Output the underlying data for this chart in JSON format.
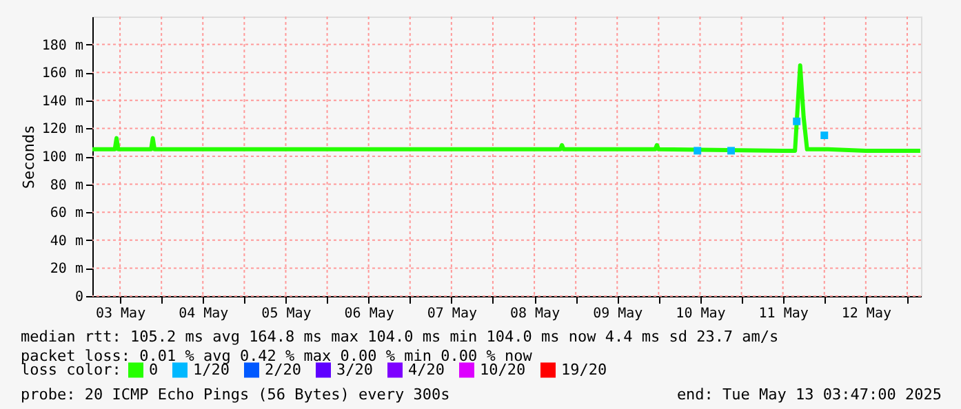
{
  "chart_data": {
    "type": "line",
    "ylabel": "Seconds",
    "x": [
      "2025-05-03T04:00",
      "2025-05-03T10:30",
      "2025-05-03T11:00",
      "2025-05-03T11:30",
      "2025-05-03T21:00",
      "2025-05-03T21:30",
      "2025-05-03T22:00",
      "2025-05-05T12:00",
      "2025-05-07T12:00",
      "2025-05-08T12:00",
      "2025-05-08T19:30",
      "2025-05-08T20:00",
      "2025-05-08T20:30",
      "2025-05-09T23:00",
      "2025-05-09T23:30",
      "2025-05-10T00:00",
      "2025-05-10T11:15",
      "2025-05-10T21:00",
      "2025-05-11T12:00",
      "2025-05-11T15:30",
      "2025-05-11T16:00",
      "2025-05-11T17:00",
      "2025-05-11T18:00",
      "2025-05-11T19:00",
      "2025-05-11T23:00",
      "2025-05-12T00:00",
      "2025-05-12T01:00",
      "2025-05-12T12:00",
      "2025-05-13T03:47"
    ],
    "series": [
      {
        "name": "0",
        "color": "#26ff00",
        "values": [
          105,
          105,
          113,
          105,
          105,
          113,
          105,
          105,
          105,
          105,
          105,
          108,
          105,
          105,
          108,
          105,
          null,
          null,
          104,
          104,
          null,
          165,
          128,
          105,
          105,
          null,
          105,
          104,
          104
        ]
      },
      {
        "name": "1/20",
        "type": "scatter",
        "marker": "square",
        "color": "#00b8ff",
        "values": [
          null,
          null,
          null,
          null,
          null,
          null,
          null,
          null,
          null,
          null,
          null,
          null,
          null,
          null,
          null,
          null,
          104,
          104,
          null,
          null,
          125,
          null,
          null,
          null,
          null,
          115,
          null,
          null,
          null
        ]
      },
      {
        "name": "2/20",
        "type": "scatter",
        "color": "#0059ff",
        "values": [
          null,
          null,
          null,
          null,
          null,
          null,
          null,
          null,
          null,
          null,
          null,
          null,
          null,
          null,
          null,
          null,
          null,
          null,
          null,
          null,
          null,
          null,
          null,
          null,
          null,
          null,
          null,
          null,
          null
        ]
      },
      {
        "name": "3/20",
        "type": "scatter",
        "color": "#5e00ff",
        "values": [
          null,
          null,
          null,
          null,
          null,
          null,
          null,
          null,
          null,
          null,
          null,
          null,
          null,
          null,
          null,
          null,
          null,
          null,
          null,
          null,
          null,
          null,
          null,
          null,
          null,
          null,
          null,
          null,
          null
        ]
      },
      {
        "name": "4/20",
        "type": "scatter",
        "color": "#7e00ff",
        "values": [
          null,
          null,
          null,
          null,
          null,
          null,
          null,
          null,
          null,
          null,
          null,
          null,
          null,
          null,
          null,
          null,
          null,
          null,
          null,
          null,
          null,
          null,
          null,
          null,
          null,
          null,
          null,
          null,
          null
        ]
      },
      {
        "name": "10/20",
        "type": "scatter",
        "color": "#dd00ff",
        "values": [
          null,
          null,
          null,
          null,
          null,
          null,
          null,
          null,
          null,
          null,
          null,
          null,
          null,
          null,
          null,
          null,
          null,
          null,
          null,
          null,
          null,
          null,
          null,
          null,
          null,
          null,
          null,
          null,
          null
        ]
      },
      {
        "name": "19/20",
        "type": "scatter",
        "color": "#ff0000",
        "values": [
          null,
          null,
          null,
          null,
          null,
          null,
          null,
          null,
          null,
          null,
          null,
          null,
          null,
          null,
          null,
          null,
          null,
          null,
          null,
          null,
          null,
          null,
          null,
          null,
          null,
          null,
          null,
          null,
          null
        ]
      }
    ],
    "legend_title": "loss color:",
    "legend": "bottom",
    "xlim": [
      "2025-05-03T04:00",
      "2025-05-13T04:00"
    ],
    "xticks": [
      {
        "value": "2025-05-03T12:00",
        "label": "03 May"
      },
      {
        "value": "2025-05-04T00:00",
        "label": null
      },
      {
        "value": "2025-05-04T12:00",
        "label": "04 May"
      },
      {
        "value": "2025-05-05T00:00",
        "label": null
      },
      {
        "value": "2025-05-05T12:00",
        "label": "05 May"
      },
      {
        "value": "2025-05-06T00:00",
        "label": null
      },
      {
        "value": "2025-05-06T12:00",
        "label": "06 May"
      },
      {
        "value": "2025-05-07T00:00",
        "label": null
      },
      {
        "value": "2025-05-07T12:00",
        "label": "07 May"
      },
      {
        "value": "2025-05-08T00:00",
        "label": null
      },
      {
        "value": "2025-05-08T12:00",
        "label": "08 May"
      },
      {
        "value": "2025-05-09T00:00",
        "label": null
      },
      {
        "value": "2025-05-09T12:00",
        "label": "09 May"
      },
      {
        "value": "2025-05-10T00:00",
        "label": null
      },
      {
        "value": "2025-05-10T12:00",
        "label": "10 May"
      },
      {
        "value": "2025-05-11T00:00",
        "label": null
      },
      {
        "value": "2025-05-11T12:00",
        "label": "11 May"
      },
      {
        "value": "2025-05-12T00:00",
        "label": null
      },
      {
        "value": "2025-05-12T12:00",
        "label": "12 May"
      },
      {
        "value": "2025-05-13T00:00",
        "label": null
      }
    ],
    "ylim": [
      0,
      200
    ],
    "yticks": [
      0,
      {
        "value": 20,
        "label": "20 m"
      },
      {
        "value": 40,
        "label": "40 m"
      },
      {
        "value": 60,
        "label": "60 m"
      },
      {
        "value": 80,
        "label": "80 m"
      },
      {
        "value": 100,
        "label": "100 m"
      },
      {
        "value": 120,
        "label": "120 m"
      },
      {
        "value": 140,
        "label": "140 m"
      },
      {
        "value": 160,
        "label": "160 m"
      },
      {
        "value": 180,
        "label": "180 m"
      }
    ],
    "grid": true,
    "annotations": [
      "median rtt:  105.2 ms avg  164.8 ms max  104.0 ms min  104.0 ms now  4.4 ms sd  23.7   am/s",
      "packet loss: 0.01 % avg  0.42 % max  0.00 % min  0.00 % now",
      "probe:       20 ICMP Echo Pings (56 Bytes) every 300s",
      "end: Tue May 13 03:47:00 2025"
    ]
  }
}
